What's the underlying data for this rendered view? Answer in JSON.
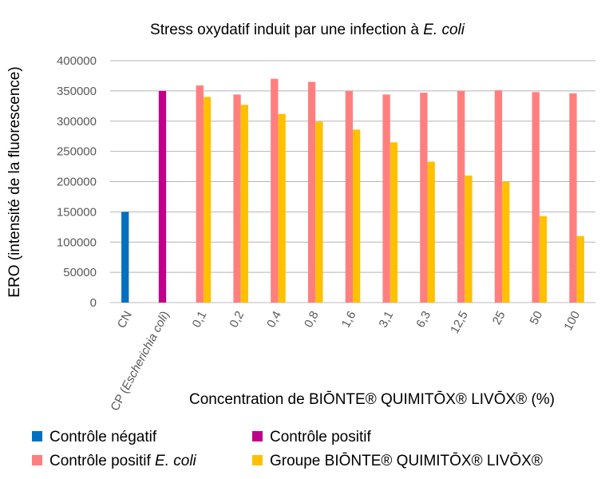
{
  "chart_data": {
    "type": "bar",
    "title_main": "Stress oxydatif induit par une infection à ",
    "title_italic": "E. coli",
    "xlabel": "Concentration de BIŌNTE® QUIMITŌX® LIVŌX® (%)",
    "ylabel": "ERO (intensité de la fluorescence)",
    "ylim": [
      0,
      400000
    ],
    "yticks": [
      0,
      50000,
      100000,
      150000,
      200000,
      250000,
      300000,
      350000,
      400000
    ],
    "grid": true,
    "categories": [
      "CN",
      "CP (Escherichia coli)",
      "0,1",
      "0,2",
      "0,4",
      "0,8",
      "1,6",
      "3,1",
      "6,3",
      "12,5",
      "25",
      "50",
      "100"
    ],
    "cp_label_plain": "CP (",
    "cp_label_italic": "Escherichia coli",
    "cp_label_end": ")",
    "series": [
      {
        "name": "Contrôle négatif",
        "color": "#0070C0",
        "values": [
          150000,
          null,
          null,
          null,
          null,
          null,
          null,
          null,
          null,
          null,
          null,
          null,
          null
        ]
      },
      {
        "name": "Contrôle positif",
        "color": "#C0008A",
        "values": [
          null,
          350000,
          null,
          null,
          null,
          null,
          null,
          null,
          null,
          null,
          null,
          null,
          null
        ]
      },
      {
        "name": "Contrôle positif E. coli",
        "color": "#FF7F7F",
        "values": [
          null,
          null,
          359000,
          344000,
          370000,
          365000,
          350000,
          344000,
          347000,
          350000,
          351000,
          348000,
          346000
        ]
      },
      {
        "name": "Groupe BIŌNTE® QUIMITŌX® LIVŌX®",
        "color": "#FFC000",
        "values": [
          null,
          null,
          340000,
          327000,
          312000,
          299000,
          286000,
          265000,
          233000,
          210000,
          200000,
          143000,
          110000
        ]
      }
    ],
    "legend": {
      "position": "bottom",
      "items": [
        {
          "plain": "Contrôle négatif",
          "italic": ""
        },
        {
          "plain": "Contrôle positif",
          "italic": ""
        },
        {
          "plain": "Contrôle positif ",
          "italic": "E. coli"
        },
        {
          "plain": "Groupe BIŌNTE® QUIMITŌX® LIVŌX®",
          "italic": ""
        }
      ]
    }
  }
}
